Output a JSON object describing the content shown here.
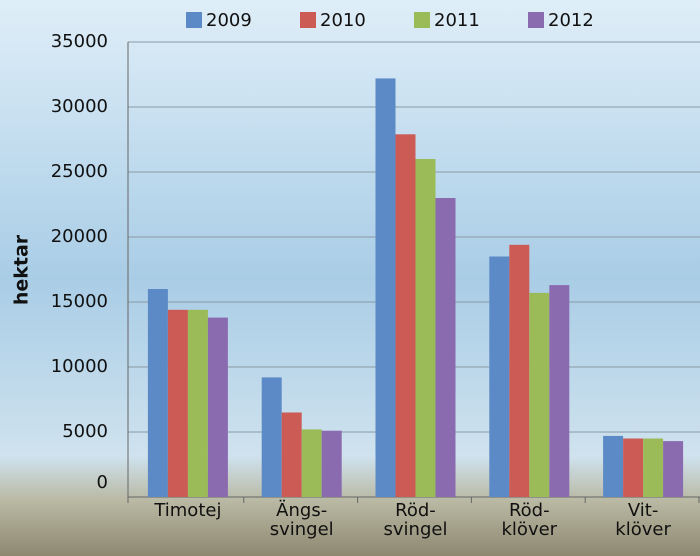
{
  "chart_data": {
    "type": "bar",
    "y_label": "hektar",
    "categories": [
      "Timotej",
      "Ängs-\nsvingel",
      "Röd-\nsvingel",
      "Röd-\nklöver",
      "Vit-\nklöver"
    ],
    "series": [
      {
        "name": "2009",
        "color": "#5b8ac6",
        "values": [
          16000,
          9200,
          32200,
          18500,
          4700
        ]
      },
      {
        "name": "2010",
        "color": "#cc5a55",
        "values": [
          14400,
          6500,
          27900,
          19400,
          4500
        ]
      },
      {
        "name": "2011",
        "color": "#9bbb59",
        "values": [
          14400,
          5200,
          26000,
          15700,
          4500
        ]
      },
      {
        "name": "2012",
        "color": "#8a6bb0",
        "values": [
          13800,
          5100,
          23000,
          16300,
          4300
        ]
      }
    ],
    "ylim": [
      0,
      35000
    ],
    "yticks": [
      0,
      5000,
      10000,
      15000,
      20000,
      25000,
      30000,
      35000
    ],
    "grid": true
  }
}
